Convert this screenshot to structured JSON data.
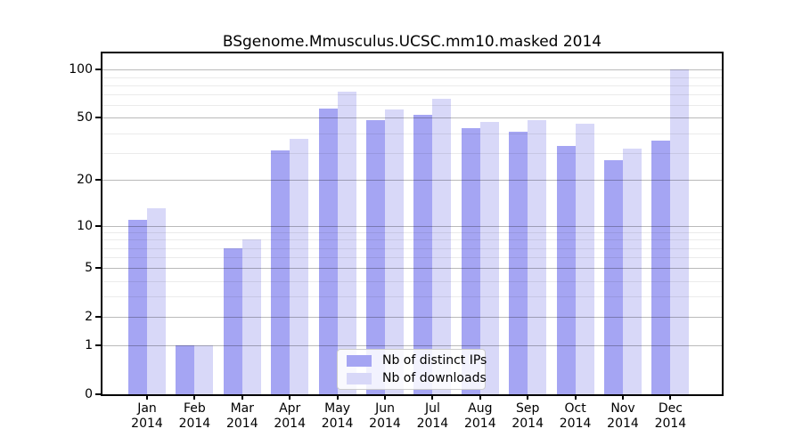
{
  "title": "BSgenome.Mmusculus.UCSC.mm10.masked 2014",
  "chart_data": {
    "type": "bar",
    "title": "BSgenome.Mmusculus.UCSC.mm10.masked 2014",
    "scale": "log10(1+x)",
    "categories": [
      "Jan",
      "Feb",
      "Mar",
      "Apr",
      "May",
      "Jun",
      "Jul",
      "Aug",
      "Sep",
      "Oct",
      "Nov",
      "Dec"
    ],
    "year_label": "2014",
    "series": [
      {
        "name": "Nb of distinct IPs",
        "color": "#a5a5f3",
        "values": [
          11,
          1,
          7,
          31,
          57,
          48,
          52,
          43,
          41,
          33,
          27,
          36
        ]
      },
      {
        "name": "Nb of downloads",
        "color": "#d8d8f8",
        "values": [
          13,
          1,
          8,
          37,
          73,
          56,
          66,
          47,
          48,
          46,
          32,
          100
        ]
      }
    ],
    "yticks": [
      0,
      1,
      2,
      5,
      10,
      20,
      50,
      100
    ],
    "minor_gridlines": [
      3,
      4,
      6,
      7,
      8,
      9,
      30,
      40,
      60,
      70,
      80,
      90
    ],
    "ylim": [
      0,
      126
    ],
    "xlabel": "",
    "ylabel": "",
    "grid": "on",
    "legend_position": "bottom-center"
  }
}
